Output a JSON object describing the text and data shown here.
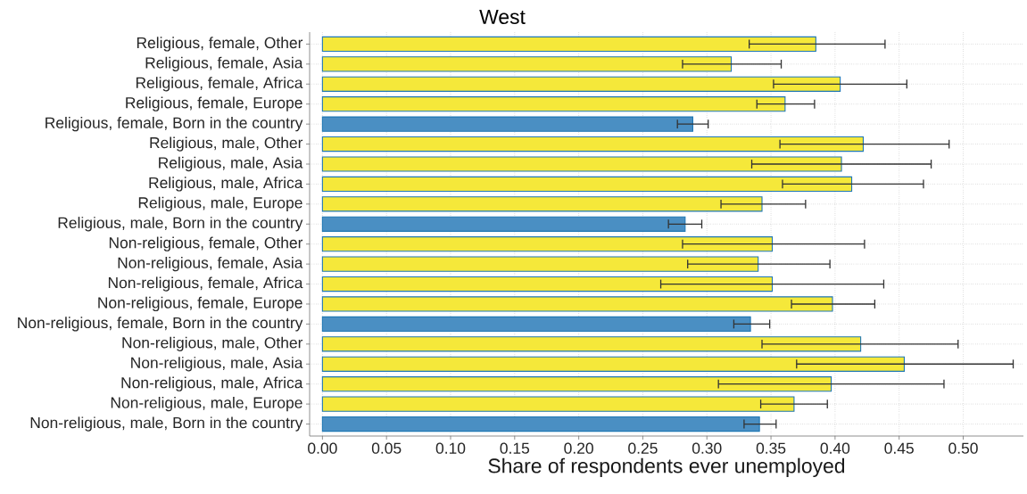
{
  "chart_data": {
    "type": "bar",
    "orientation": "horizontal",
    "title": "West",
    "xlabel": "Share of respondents ever unemployed",
    "categories": [
      "Religious, female, Other",
      "Religious, female, Asia",
      "Religious, female, Africa",
      "Religious, female, Europe",
      "Religious, female, Born in the country",
      "Religious, male, Other",
      "Religious, male, Asia",
      "Religious, male, Africa",
      "Religious, male, Europe",
      "Religious, male, Born in the country",
      "Non-religious, female, Other",
      "Non-religious, female, Asia",
      "Non-religious, female, Africa",
      "Non-religious, female, Europe",
      "Non-religious, female, Born in the country",
      "Non-religious, male, Other",
      "Non-religious, male, Asia",
      "Non-religious, male, Africa",
      "Non-religious, male, Europe",
      "Non-religious, male, Born in the country"
    ],
    "values": [
      0.385,
      0.319,
      0.404,
      0.361,
      0.289,
      0.422,
      0.405,
      0.413,
      0.343,
      0.283,
      0.351,
      0.34,
      0.351,
      0.398,
      0.334,
      0.42,
      0.454,
      0.397,
      0.368,
      0.341
    ],
    "errors": [
      [
        0.333,
        0.439
      ],
      [
        0.281,
        0.358
      ],
      [
        0.352,
        0.456
      ],
      [
        0.339,
        0.384
      ],
      [
        0.277,
        0.301
      ],
      [
        0.357,
        0.489
      ],
      [
        0.335,
        0.475
      ],
      [
        0.359,
        0.469
      ],
      [
        0.311,
        0.377
      ],
      [
        0.27,
        0.296
      ],
      [
        0.281,
        0.423
      ],
      [
        0.285,
        0.396
      ],
      [
        0.264,
        0.438
      ],
      [
        0.366,
        0.431
      ],
      [
        0.321,
        0.349
      ],
      [
        0.343,
        0.496
      ],
      [
        0.37,
        0.539
      ],
      [
        0.309,
        0.485
      ],
      [
        0.342,
        0.394
      ],
      [
        0.329,
        0.354
      ]
    ],
    "colors": [
      "#f5e83a",
      "#f5e83a",
      "#f5e83a",
      "#f5e83a",
      "#4a8fc3",
      "#f5e83a",
      "#f5e83a",
      "#f5e83a",
      "#f5e83a",
      "#4a8fc3",
      "#f5e83a",
      "#f5e83a",
      "#f5e83a",
      "#f5e83a",
      "#4a8fc3",
      "#f5e83a",
      "#f5e83a",
      "#f5e83a",
      "#f5e83a",
      "#4a8fc3"
    ],
    "xlim": [
      -0.01,
      0.547
    ],
    "xticks": [
      {
        "value": 0,
        "label": "0.00"
      },
      {
        "value": 0.05,
        "label": "0.05"
      },
      {
        "value": 0.1,
        "label": "0.10"
      },
      {
        "value": 0.15,
        "label": "0.15"
      },
      {
        "value": 0.2,
        "label": "0.20"
      },
      {
        "value": 0.25,
        "label": "0.25"
      },
      {
        "value": 0.3,
        "label": "0.30"
      },
      {
        "value": 0.35,
        "label": "0.35"
      },
      {
        "value": 0.4,
        "label": "0.40"
      },
      {
        "value": 0.45,
        "label": "0.45"
      },
      {
        "value": 0.5,
        "label": "0.50"
      }
    ],
    "grid": true
  }
}
